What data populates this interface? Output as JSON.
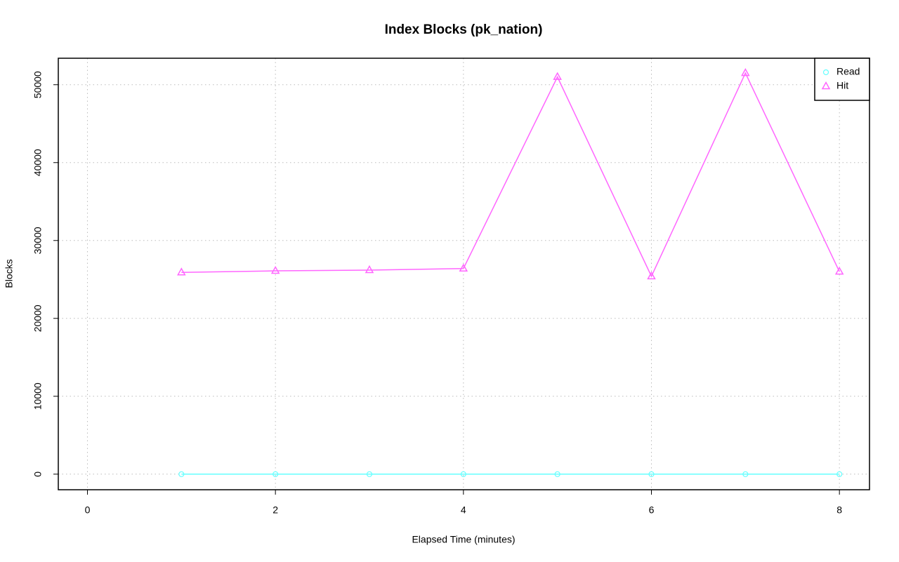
{
  "chart_data": {
    "type": "line",
    "title": "Index Blocks (pk_nation)",
    "x_label": "Elapsed Time (minutes)",
    "y_label": "Blocks",
    "x": [
      1,
      2,
      3,
      4,
      5,
      6,
      7,
      8
    ],
    "series": [
      {
        "name": "Read",
        "color": "#66ffff",
        "marker": "circle",
        "values": [
          0,
          0,
          0,
          0,
          0,
          0,
          0,
          0
        ]
      },
      {
        "name": "Hit",
        "color": "#ff66ff",
        "marker": "triangle",
        "values": [
          25900,
          26100,
          26200,
          26400,
          51000,
          25400,
          51500,
          26000
        ]
      }
    ],
    "xlim": [
      -0.31,
      8.32
    ],
    "xticks": [
      0,
      2,
      4,
      6,
      8
    ],
    "ylim": [
      -2000,
      53400
    ],
    "yticks": [
      0,
      10000,
      20000,
      30000,
      40000,
      50000
    ],
    "grid": true,
    "legend_position": "top-right"
  }
}
